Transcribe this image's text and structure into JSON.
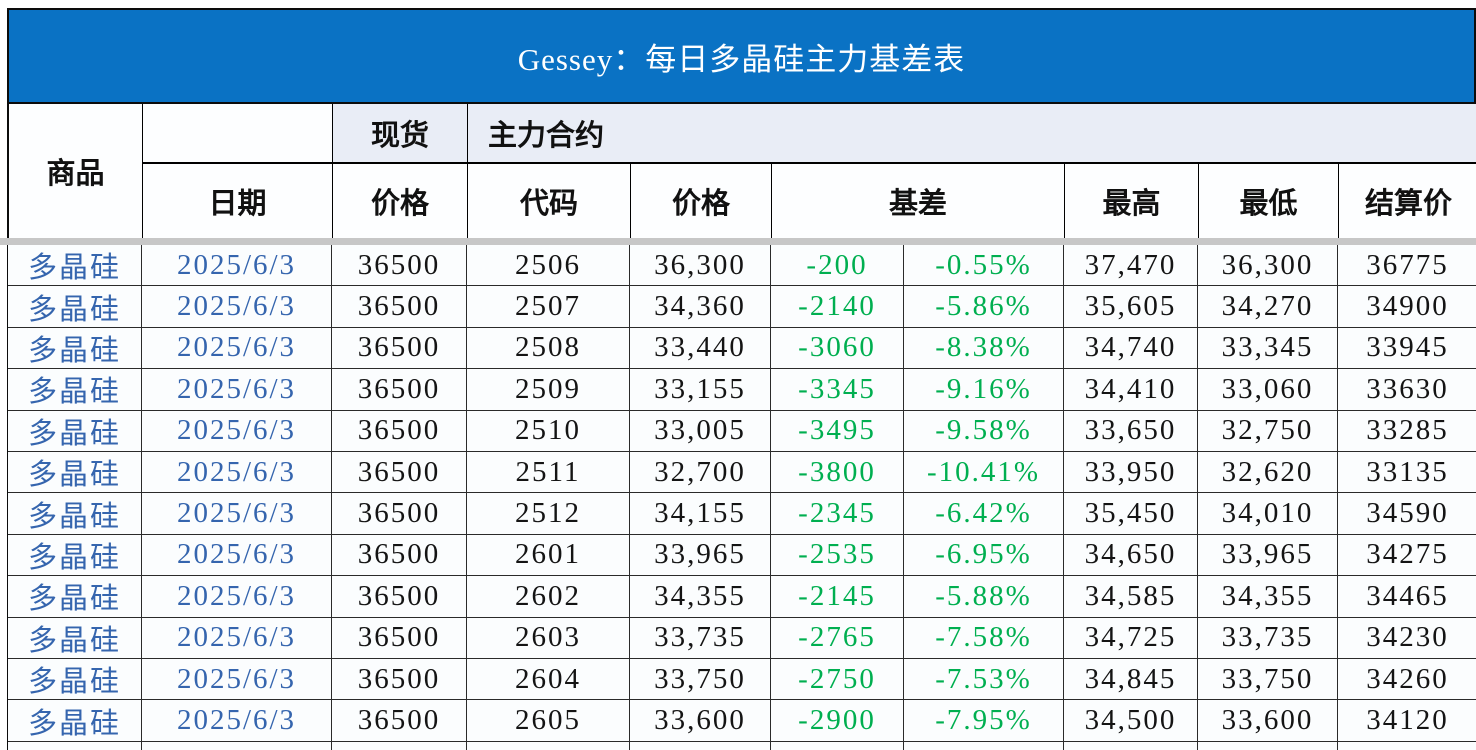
{
  "title": "Gessey：每日多晶硅主力基差表",
  "colors": {
    "title_bg": "#0a72c4",
    "header_tint": "#e9edf6",
    "cell_bg": "#fbfdfe",
    "blue_text": "#3565ae",
    "green_text": "#00af50",
    "band_gray": "#c7c7c7"
  },
  "header": {
    "commodity": "商品",
    "date": "日期",
    "spot_group": "现货",
    "main_group": "主力合约",
    "spot_price": "价格",
    "code": "代码",
    "price": "价格",
    "basis": "基差",
    "high": "最高",
    "low": "最低",
    "settlement": "结算价"
  },
  "rows": [
    {
      "commodity": "多晶硅",
      "date": "2025/6/3",
      "spot": "36500",
      "code": "2506",
      "price": "36,300",
      "basis": "-200",
      "basis_pct": "-0.55%",
      "high": "37,470",
      "low": "36,300",
      "settle": "36775"
    },
    {
      "commodity": "多晶硅",
      "date": "2025/6/3",
      "spot": "36500",
      "code": "2507",
      "price": "34,360",
      "basis": "-2140",
      "basis_pct": "-5.86%",
      "high": "35,605",
      "low": "34,270",
      "settle": "34900"
    },
    {
      "commodity": "多晶硅",
      "date": "2025/6/3",
      "spot": "36500",
      "code": "2508",
      "price": "33,440",
      "basis": "-3060",
      "basis_pct": "-8.38%",
      "high": "34,740",
      "low": "33,345",
      "settle": "33945"
    },
    {
      "commodity": "多晶硅",
      "date": "2025/6/3",
      "spot": "36500",
      "code": "2509",
      "price": "33,155",
      "basis": "-3345",
      "basis_pct": "-9.16%",
      "high": "34,410",
      "low": "33,060",
      "settle": "33630"
    },
    {
      "commodity": "多晶硅",
      "date": "2025/6/3",
      "spot": "36500",
      "code": "2510",
      "price": "33,005",
      "basis": "-3495",
      "basis_pct": "-9.58%",
      "high": "33,650",
      "low": "32,750",
      "settle": "33285"
    },
    {
      "commodity": "多晶硅",
      "date": "2025/6/3",
      "spot": "36500",
      "code": "2511",
      "price": "32,700",
      "basis": "-3800",
      "basis_pct": "-10.41%",
      "high": "33,950",
      "low": "32,620",
      "settle": "33135"
    },
    {
      "commodity": "多晶硅",
      "date": "2025/6/3",
      "spot": "36500",
      "code": "2512",
      "price": "34,155",
      "basis": "-2345",
      "basis_pct": "-6.42%",
      "high": "35,450",
      "low": "34,010",
      "settle": "34590"
    },
    {
      "commodity": "多晶硅",
      "date": "2025/6/3",
      "spot": "36500",
      "code": "2601",
      "price": "33,965",
      "basis": "-2535",
      "basis_pct": "-6.95%",
      "high": "34,650",
      "low": "33,965",
      "settle": "34275"
    },
    {
      "commodity": "多晶硅",
      "date": "2025/6/3",
      "spot": "36500",
      "code": "2602",
      "price": "34,355",
      "basis": "-2145",
      "basis_pct": "-5.88%",
      "high": "34,585",
      "low": "34,355",
      "settle": "34465"
    },
    {
      "commodity": "多晶硅",
      "date": "2025/6/3",
      "spot": "36500",
      "code": "2603",
      "price": "33,735",
      "basis": "-2765",
      "basis_pct": "-7.58%",
      "high": "34,725",
      "low": "33,735",
      "settle": "34230"
    },
    {
      "commodity": "多晶硅",
      "date": "2025/6/3",
      "spot": "36500",
      "code": "2604",
      "price": "33,750",
      "basis": "-2750",
      "basis_pct": "-7.53%",
      "high": "34,845",
      "low": "33,750",
      "settle": "34260"
    },
    {
      "commodity": "多晶硅",
      "date": "2025/6/3",
      "spot": "36500",
      "code": "2605",
      "price": "33,600",
      "basis": "-2900",
      "basis_pct": "-7.95%",
      "high": "34,500",
      "low": "33,600",
      "settle": "34120"
    }
  ]
}
